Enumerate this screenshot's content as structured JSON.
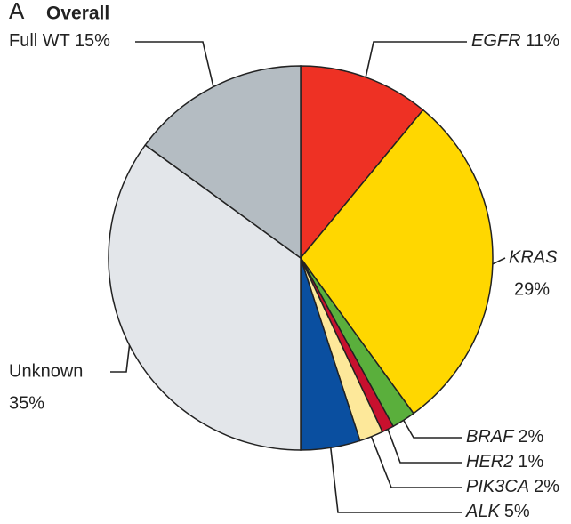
{
  "chart_data": {
    "type": "pie",
    "panel": "A",
    "title": "Overall",
    "categories": [
      "EGFR",
      "KRAS",
      "BRAF",
      "HER2",
      "PIK3CA",
      "ALK",
      "Unknown",
      "Full WT"
    ],
    "values": [
      11,
      29,
      2,
      1,
      2,
      5,
      35,
      15
    ],
    "value_labels": [
      "11%",
      "29%",
      "2%",
      "1%",
      "2%",
      "5%",
      "35%",
      "15%"
    ],
    "colors": [
      "#ee3124",
      "#ffd700",
      "#5aaf3c",
      "#c8102e",
      "#fde89a",
      "#0a4fa0",
      "#e3e6ea",
      "#b4bcc2"
    ]
  }
}
